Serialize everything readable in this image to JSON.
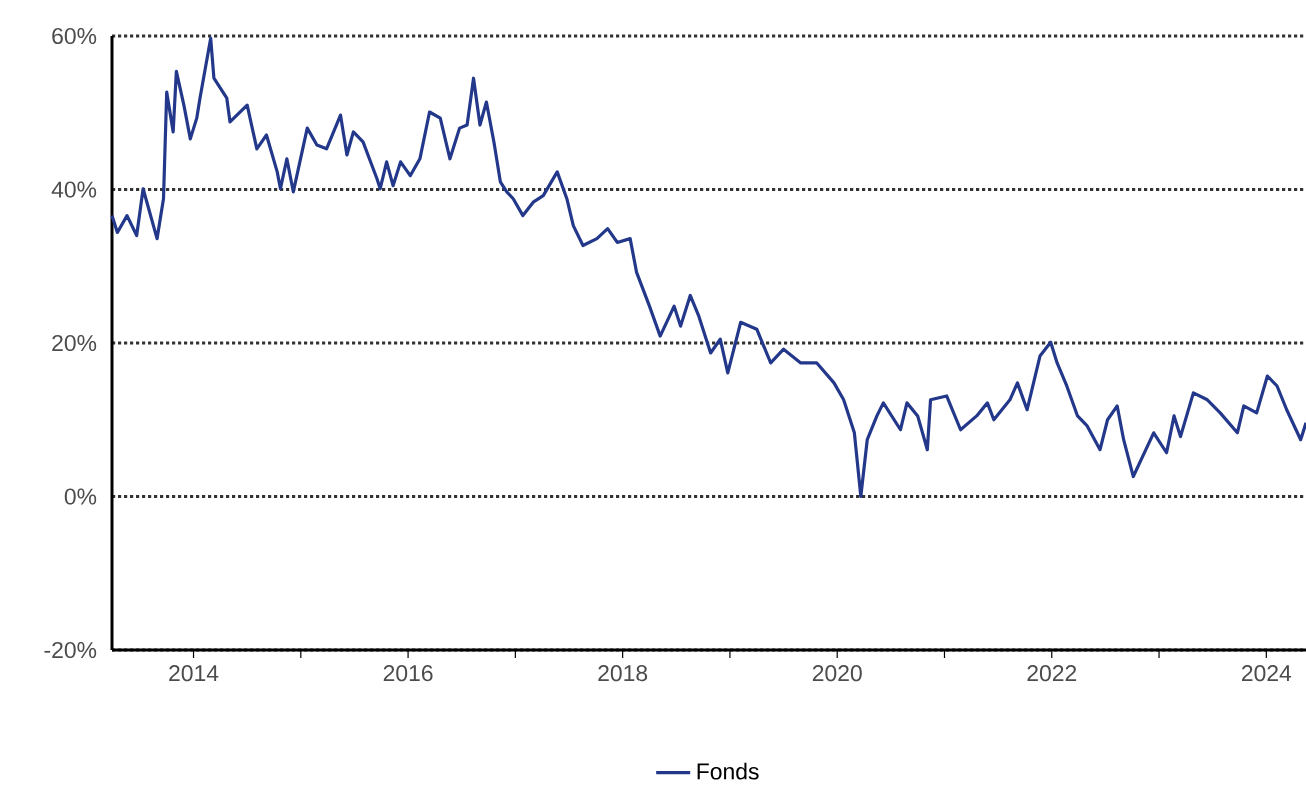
{
  "chart_data": {
    "type": "line",
    "xlim": [
      2013.24,
      2024.37
    ],
    "ylim": [
      -20,
      60
    ],
    "xticks": [
      2014,
      {
        "value": 2015,
        "label": null
      },
      2016,
      {
        "value": 2017,
        "label": null
      },
      2018,
      {
        "value": 2019,
        "label": null
      },
      2020,
      {
        "value": 2021,
        "label": null
      },
      2022,
      {
        "value": 2023,
        "label": null
      },
      2024
    ],
    "yticks": [
      {
        "value": -20,
        "label": "-20%"
      },
      {
        "value": 0,
        "label": "0%"
      },
      {
        "value": 20,
        "label": "20%"
      },
      {
        "value": 40,
        "label": "40%"
      },
      {
        "value": 60,
        "label": "60%"
      }
    ],
    "grid": "y",
    "legend": "bottom",
    "marker": "none",
    "line_style": "solid",
    "series": [
      {
        "name": "Fonds",
        "color": "#23388a",
        "x": [
          2013.24,
          2013.29,
          2013.38,
          2013.47,
          2013.53,
          2013.66,
          2013.72,
          2013.75,
          2013.81,
          2013.84,
          2013.91,
          2013.97,
          2014.03,
          2014.06,
          2014.16,
          2014.19,
          2014.31,
          2014.34,
          2014.5,
          2014.59,
          2014.68,
          2014.78,
          2014.81,
          2014.87,
          2014.93,
          2015.06,
          2015.15,
          2015.24,
          2015.37,
          2015.43,
          2015.49,
          2015.58,
          2015.71,
          2015.74,
          2015.8,
          2015.86,
          2015.93,
          2016.02,
          2016.11,
          2016.2,
          2016.3,
          2016.39,
          2016.48,
          2016.55,
          2016.61,
          2016.67,
          2016.73,
          2016.8,
          2016.86,
          2016.92,
          2016.98,
          2017.07,
          2017.17,
          2017.26,
          2017.39,
          2017.48,
          2017.54,
          2017.63,
          2017.76,
          2017.86,
          2017.95,
          2018.07,
          2018.13,
          2018.25,
          2018.35,
          2018.48,
          2018.54,
          2018.63,
          2018.71,
          2018.82,
          2018.91,
          2018.98,
          2019.1,
          2019.25,
          2019.38,
          2019.5,
          2019.66,
          2019.81,
          2019.97,
          2020.06,
          2020.16,
          2020.22,
          2020.28,
          2020.37,
          2020.43,
          2020.59,
          2020.65,
          2020.75,
          2020.84,
          2020.87,
          2021.02,
          2021.15,
          2021.3,
          2021.4,
          2021.46,
          2021.61,
          2021.68,
          2021.77,
          2021.89,
          2021.99,
          2022.05,
          2022.14,
          2022.24,
          2022.33,
          2022.45,
          2022.52,
          2022.61,
          2022.67,
          2022.76,
          2022.89,
          2022.95,
          2023.07,
          2023.14,
          2023.2,
          2023.32,
          2023.45,
          2023.57,
          2023.73,
          2023.79,
          2023.91,
          2024.01,
          2024.1,
          2024.19,
          2024.32,
          2024.37
        ],
        "values": [
          36.6,
          34.4,
          36.6,
          34.0,
          40.1,
          33.6,
          38.8,
          52.7,
          47.5,
          55.4,
          51.0,
          46.6,
          49.3,
          51.9,
          59.7,
          54.5,
          51.9,
          48.8,
          51.0,
          45.3,
          47.1,
          42.3,
          40.1,
          44.0,
          39.7,
          48.0,
          45.8,
          45.3,
          49.7,
          44.5,
          47.5,
          46.2,
          41.4,
          40.1,
          43.6,
          40.5,
          43.6,
          41.8,
          44.0,
          50.1,
          49.3,
          44.0,
          48.0,
          48.4,
          54.5,
          48.4,
          51.4,
          46.2,
          41.0,
          39.7,
          38.8,
          36.6,
          38.4,
          39.2,
          42.3,
          38.8,
          35.3,
          32.7,
          33.6,
          34.9,
          33.1,
          33.6,
          29.2,
          24.8,
          20.9,
          24.8,
          22.2,
          26.2,
          23.5,
          18.7,
          20.5,
          16.1,
          22.7,
          21.8,
          17.4,
          19.2,
          17.4,
          17.4,
          14.8,
          12.6,
          8.3,
          0.0,
          7.4,
          10.5,
          12.2,
          8.7,
          12.2,
          10.5,
          6.1,
          12.6,
          13.1,
          8.7,
          10.5,
          12.2,
          10.0,
          12.6,
          14.8,
          11.3,
          18.3,
          20.1,
          17.4,
          14.4,
          10.5,
          9.2,
          6.1,
          10.0,
          11.8,
          7.4,
          2.6,
          6.5,
          8.3,
          5.7,
          10.5,
          7.8,
          13.5,
          12.6,
          10.9,
          8.3,
          11.8,
          10.9,
          15.7,
          14.4,
          11.3,
          7.4,
          9.6
        ]
      }
    ]
  }
}
